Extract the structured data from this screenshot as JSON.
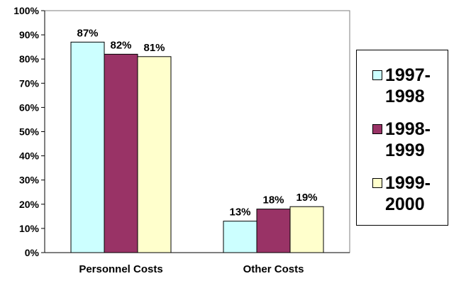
{
  "chart_data": {
    "type": "bar",
    "categories": [
      "Personnel Costs",
      "Other Costs"
    ],
    "series": [
      {
        "name": "1997-1998",
        "values": [
          87,
          13
        ],
        "labels": [
          "87%",
          "13%"
        ],
        "color": "#ccffff"
      },
      {
        "name": "1998-1999",
        "values": [
          82,
          18
        ],
        "labels": [
          "82%",
          "18%"
        ],
        "color": "#993366"
      },
      {
        "name": "1999-2000",
        "values": [
          81,
          19
        ],
        "labels": [
          "81%",
          "19%"
        ],
        "color": "#ffffcc"
      }
    ],
    "ylim": [
      0,
      100
    ],
    "yticks": [
      "0%",
      "10%",
      "20%",
      "30%",
      "40%",
      "50%",
      "60%",
      "70%",
      "80%",
      "90%",
      "100%"
    ],
    "title": "",
    "xlabel": "",
    "ylabel": "",
    "grid": false,
    "legend_position": "right"
  },
  "legend": {
    "items": [
      {
        "line1": "1997-",
        "line2": "1998"
      },
      {
        "line1": "1998-",
        "line2": "1999"
      },
      {
        "line1": "1999-",
        "line2": "2000"
      }
    ]
  }
}
